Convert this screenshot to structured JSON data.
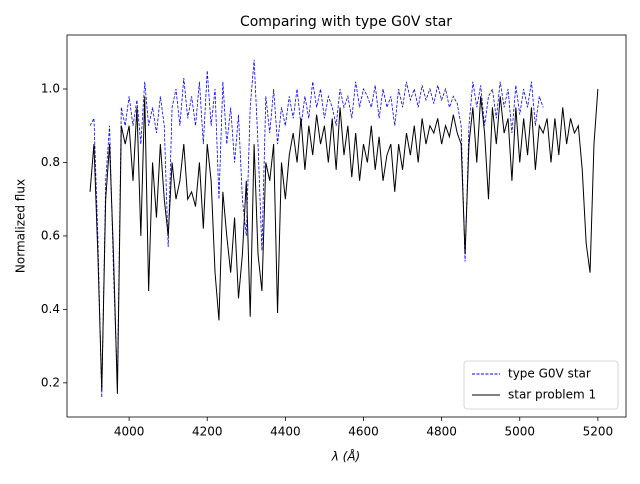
{
  "chart_data": {
    "type": "line",
    "title": "Comparing with type G0V star",
    "x_label": "λ (Å)",
    "y_label": "Normalized flux",
    "x": [
      3900,
      3910,
      3920,
      3930,
      3940,
      3950,
      3960,
      3970,
      3980,
      3990,
      4000,
      4010,
      4020,
      4030,
      4040,
      4050,
      4060,
      4070,
      4080,
      4090,
      4100,
      4110,
      4120,
      4130,
      4140,
      4150,
      4160,
      4170,
      4180,
      4190,
      4200,
      4210,
      4220,
      4230,
      4240,
      4250,
      4260,
      4270,
      4280,
      4290,
      4300,
      4310,
      4320,
      4330,
      4340,
      4350,
      4360,
      4370,
      4380,
      4390,
      4400,
      4410,
      4420,
      4430,
      4440,
      4450,
      4460,
      4470,
      4480,
      4490,
      4500,
      4510,
      4520,
      4530,
      4540,
      4550,
      4560,
      4570,
      4580,
      4590,
      4600,
      4610,
      4620,
      4630,
      4640,
      4650,
      4660,
      4670,
      4680,
      4690,
      4700,
      4710,
      4720,
      4730,
      4740,
      4750,
      4760,
      4770,
      4780,
      4790,
      4800,
      4810,
      4820,
      4830,
      4840,
      4850,
      4860,
      4870,
      4880,
      4890,
      4900,
      4910,
      4920,
      4930,
      4940,
      4950,
      4960,
      4970,
      4980,
      4990,
      5000,
      5010,
      5020,
      5030,
      5040,
      5050,
      5060,
      5070,
      5080,
      5090,
      5100,
      5110,
      5120,
      5130,
      5140,
      5150,
      5160,
      5170,
      5180,
      5190,
      5200
    ],
    "series": [
      {
        "name": "type G0V star",
        "color": "#0000ff",
        "linestyle": "dashed",
        "values": [
          0.9,
          0.92,
          0.6,
          0.16,
          0.75,
          0.9,
          0.5,
          0.2,
          0.95,
          0.9,
          0.98,
          0.9,
          0.97,
          0.85,
          1.02,
          0.9,
          0.95,
          0.88,
          0.98,
          0.9,
          0.57,
          0.95,
          1.0,
          0.9,
          1.03,
          0.92,
          0.98,
          0.9,
          1.02,
          0.85,
          1.05,
          0.9,
          1.0,
          0.7,
          1.02,
          0.85,
          0.95,
          0.8,
          0.93,
          0.7,
          0.6,
          0.95,
          1.08,
          0.85,
          0.56,
          0.98,
          0.88,
          1.0,
          0.85,
          0.95,
          0.9,
          0.98,
          0.92,
          1.0,
          0.9,
          0.98,
          0.92,
          1.02,
          0.95,
          1.0,
          0.92,
          0.98,
          0.95,
          0.9,
          1.0,
          0.95,
          0.98,
          0.92,
          1.02,
          0.95,
          1.0,
          0.98,
          0.95,
          1.01,
          0.92,
          1.0,
          0.95,
          0.98,
          0.9,
          1.0,
          0.95,
          1.02,
          0.97,
          1.0,
          0.95,
          1.01,
          0.97,
          1.0,
          0.96,
          1.01,
          0.97,
          1.0,
          0.95,
          0.98,
          0.96,
          0.9,
          0.53,
          0.9,
          1.02,
          0.95,
          1.01,
          0.9,
          0.98,
          1.0,
          0.92,
          1.02,
          0.95,
          1.0,
          0.88,
          1.01,
          0.93,
          1.0,
          0.95,
          1.02,
          0.9,
          0.98,
          0.95,
          null,
          null,
          null,
          null,
          null,
          null,
          null,
          null,
          null,
          null,
          null,
          null,
          null,
          null
        ]
      },
      {
        "name": "star problem 1",
        "color": "#000000",
        "linestyle": "solid",
        "values": [
          0.72,
          0.85,
          0.55,
          0.18,
          0.7,
          0.85,
          0.55,
          0.17,
          0.9,
          0.85,
          0.9,
          0.75,
          0.95,
          0.6,
          0.98,
          0.45,
          0.8,
          0.65,
          0.85,
          0.7,
          0.6,
          0.8,
          0.7,
          0.75,
          0.85,
          0.7,
          0.72,
          0.68,
          0.8,
          0.62,
          0.85,
          0.75,
          0.5,
          0.37,
          0.72,
          0.6,
          0.5,
          0.65,
          0.43,
          0.55,
          0.75,
          0.38,
          0.85,
          0.55,
          0.45,
          0.8,
          0.75,
          0.85,
          0.39,
          0.8,
          0.7,
          0.82,
          0.88,
          0.8,
          0.92,
          0.78,
          0.9,
          0.82,
          0.93,
          0.85,
          0.9,
          0.8,
          0.92,
          0.78,
          0.95,
          0.82,
          0.9,
          0.76,
          0.88,
          0.75,
          0.85,
          0.8,
          0.9,
          0.78,
          0.87,
          0.75,
          0.82,
          0.85,
          0.72,
          0.85,
          0.78,
          0.88,
          0.82,
          0.9,
          0.8,
          0.92,
          0.85,
          0.9,
          0.88,
          0.92,
          0.85,
          0.9,
          0.87,
          0.93,
          0.88,
          0.85,
          0.55,
          0.85,
          0.95,
          0.8,
          0.98,
          0.88,
          0.7,
          0.95,
          0.85,
          0.98,
          0.88,
          0.92,
          0.75,
          0.95,
          0.8,
          0.92,
          0.82,
          0.95,
          0.78,
          0.9,
          0.88,
          0.92,
          0.8,
          0.92,
          0.82,
          0.95,
          0.85,
          0.92,
          0.88,
          0.9,
          0.78,
          0.58,
          0.5,
          0.85,
          1.0
        ]
      }
    ],
    "xlim": [
      3841,
      5272
    ],
    "ylim": [
      0.107,
      1.147
    ],
    "xticks": [
      4000,
      4200,
      4400,
      4600,
      4800,
      5000,
      5200
    ],
    "yticks": [
      0.2,
      0.4,
      0.6,
      0.8,
      {
        "value": 1,
        "label": "1.0"
      }
    ],
    "legend": "lower right"
  }
}
